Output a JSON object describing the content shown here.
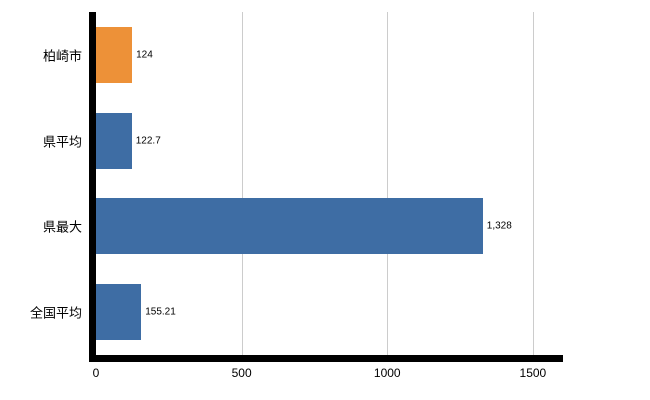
{
  "chart_data": {
    "type": "bar",
    "orientation": "horizontal",
    "title": "",
    "xlabel": "",
    "ylabel": "",
    "categories": [
      "柏崎市",
      "県平均",
      "県最大",
      "全国平均"
    ],
    "values": [
      124,
      122.7,
      1328,
      155.21
    ],
    "value_labels": [
      "124",
      "122.7",
      "1,328",
      "155.21"
    ],
    "bar_colors": [
      "#ED9138",
      "#3E6DA4",
      "#3E6DA4",
      "#3E6DA4"
    ],
    "xlim": [
      0,
      1600
    ],
    "x_ticks": [
      0,
      500,
      1000,
      1500
    ],
    "x_tick_labels": [
      "0",
      "500",
      "1000",
      "1500"
    ],
    "grid": true,
    "legend": "none"
  },
  "colors": {
    "background": "#ffffff",
    "axis": "#000000",
    "gridline": "#cccccc",
    "text": "#000000"
  }
}
